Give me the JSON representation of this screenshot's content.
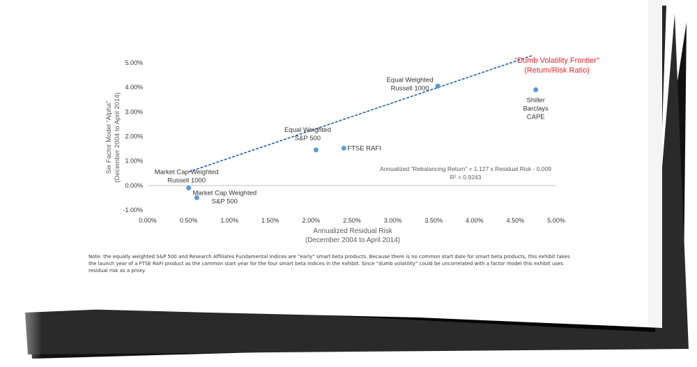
{
  "chart_data": {
    "type": "scatter",
    "xlabel_lines": [
      "Annualized Residual Risk",
      "(December 2004 to April 2014)"
    ],
    "ylabel_lines": [
      "Six Factor Model “Alpha”",
      "(December 2004 to April 2014)"
    ],
    "xlim": [
      0,
      5
    ],
    "ylim": [
      -1,
      5
    ],
    "x_ticks": [
      {
        "v": 0,
        "label": "0.00%"
      },
      {
        "v": 0.5,
        "label": "0.50%"
      },
      {
        "v": 1,
        "label": "1.00%"
      },
      {
        "v": 1.5,
        "label": "1.50%"
      },
      {
        "v": 2,
        "label": "2.00%"
      },
      {
        "v": 2.5,
        "label": "2.50%"
      },
      {
        "v": 3,
        "label": "3.00%"
      },
      {
        "v": 3.5,
        "label": "3.50%"
      },
      {
        "v": 4,
        "label": "4.00%"
      },
      {
        "v": 4.5,
        "label": "4.50%"
      },
      {
        "v": 5,
        "label": "5.00%"
      }
    ],
    "y_ticks": [
      {
        "v": 5,
        "label": "5.00%"
      },
      {
        "v": 4,
        "label": "4.00%"
      },
      {
        "v": 3,
        "label": "3.00%"
      },
      {
        "v": 2,
        "label": "2.00%"
      },
      {
        "v": 1,
        "label": "1.00%"
      },
      {
        "v": 0,
        "label": "0.00%"
      },
      {
        "v": -1,
        "label": "-1.00%"
      }
    ],
    "points": [
      {
        "x": 0.5,
        "y": -0.1,
        "label_lines": [
          "Market Cap Weighted",
          "Russell 1000"
        ],
        "label_pos": "above-left"
      },
      {
        "x": 0.6,
        "y": -0.5,
        "label_lines": [
          "Market Cap Weighted",
          "S&P 500"
        ],
        "label_pos": "right"
      },
      {
        "x": 2.06,
        "y": 1.45,
        "label_lines": [
          "Equal Weighted",
          "S&P 500"
        ],
        "label_pos": "above"
      },
      {
        "x": 2.4,
        "y": 1.52,
        "label_lines": [
          "FTSE RAFI"
        ],
        "label_pos": "inline-right"
      },
      {
        "x": 3.55,
        "y": 4.05,
        "label_lines": [
          "Equal Weighted",
          "Russell 1000"
        ],
        "label_pos": "left"
      },
      {
        "x": 4.75,
        "y": 3.9,
        "label_lines": [
          "Shiller",
          "Barclays",
          "CAPE"
        ],
        "label_pos": "below"
      }
    ],
    "trendline": {
      "slope": 1.127,
      "intercept": -0.009,
      "x_start": 0.5,
      "x_end": 4.7,
      "color": "#1f5fa8",
      "style": "dashed"
    },
    "equation_lines": [
      "Annualized “Rebalancing Return” = 1.127 x Residual Risk - 0.009",
      "R² = 0.9243"
    ],
    "frontier_label_lines": [
      "“Dumb Volatility Frontier”",
      "(Return/Risk Ratio)"
    ],
    "colors": {
      "point": "#5b9bd5",
      "frontier_label": "#e8262a",
      "axis": "#bfbfbf",
      "text": "#333333",
      "equation": "#595959"
    }
  },
  "note": "Note: the equally weighted S&P 500 and Research Affiliates Fundamental Indices are “early” smart beta products. Because there is no common start date for smart beta products, this exhibit takes the launch year of a FTSE RAFI product as the common start year for the four smart beta indices in the exhibit. Since “dumb volatility” could be uncorrelated with a factor model this exhibit uses residual risk as a proxy."
}
